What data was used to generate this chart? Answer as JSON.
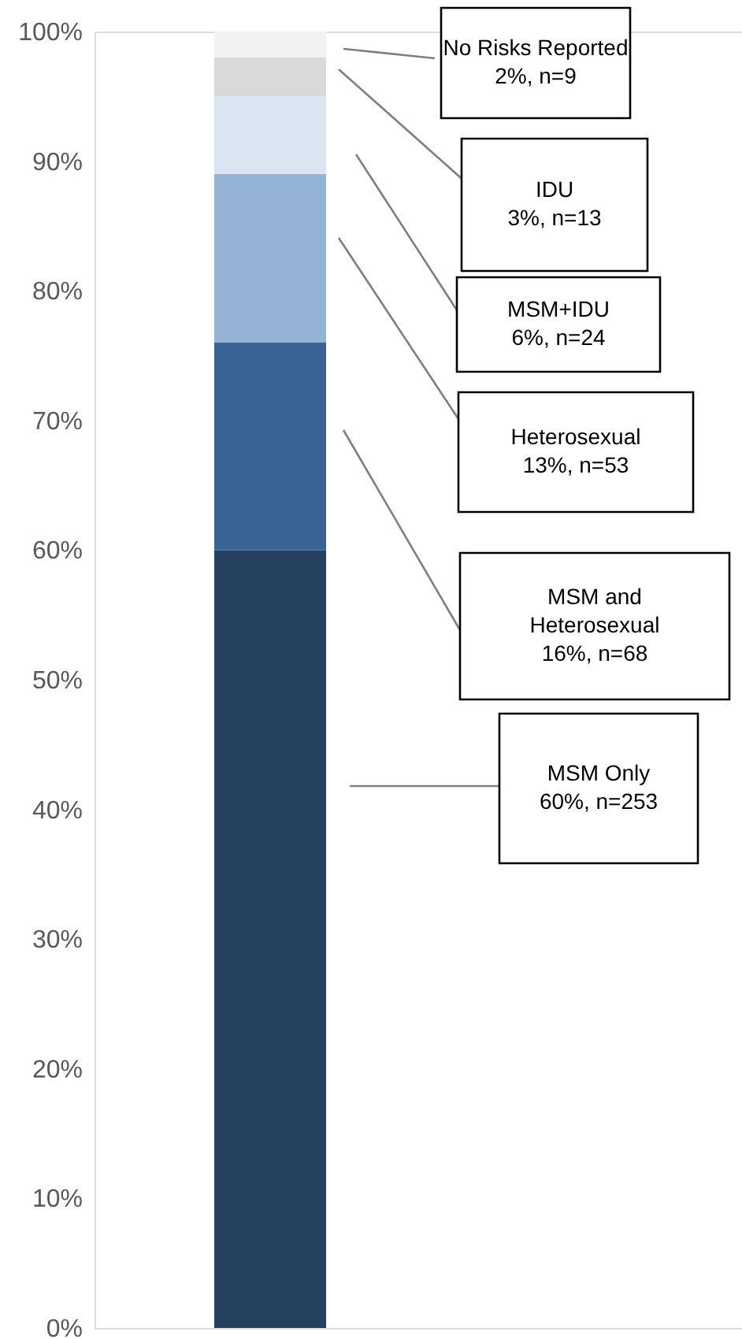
{
  "chart_data": {
    "type": "bar",
    "stacked": true,
    "categories": [
      null
    ],
    "legend": false,
    "grid": false,
    "ylim": [
      0,
      100
    ],
    "yticks": [
      {
        "value": 0,
        "label": "0%"
      },
      {
        "value": 10,
        "label": "10%"
      },
      {
        "value": 20,
        "label": "20%"
      },
      {
        "value": 30,
        "label": "30%"
      },
      {
        "value": 40,
        "label": "40%"
      },
      {
        "value": 50,
        "label": "50%"
      },
      {
        "value": 60,
        "label": "60%"
      },
      {
        "value": 70,
        "label": "70%"
      },
      {
        "value": 80,
        "label": "80%"
      },
      {
        "value": 90,
        "label": "90%"
      },
      {
        "value": 100,
        "label": "100%"
      }
    ],
    "series": [
      {
        "name": "MSM Only",
        "color": "#264060",
        "values": [
          60
        ]
      },
      {
        "name": "MSM and Heterosexual",
        "color": "#386394",
        "values": [
          16
        ]
      },
      {
        "name": "Heterosexual",
        "color": "#95b3d7",
        "values": [
          13
        ]
      },
      {
        "name": "MSM+IDU",
        "color": "#dbe5f1",
        "values": [
          6
        ]
      },
      {
        "name": "IDU",
        "color": "#d9d9d9",
        "values": [
          3
        ]
      },
      {
        "name": "No Risks Reported",
        "color": "#f2f2f2",
        "values": [
          2
        ]
      }
    ],
    "annotations": [
      "60%, n=253",
      "16%, n=68",
      "13%, n=53",
      "6%, n=24",
      "3%, n=13",
      "2%, n=9"
    ]
  }
}
